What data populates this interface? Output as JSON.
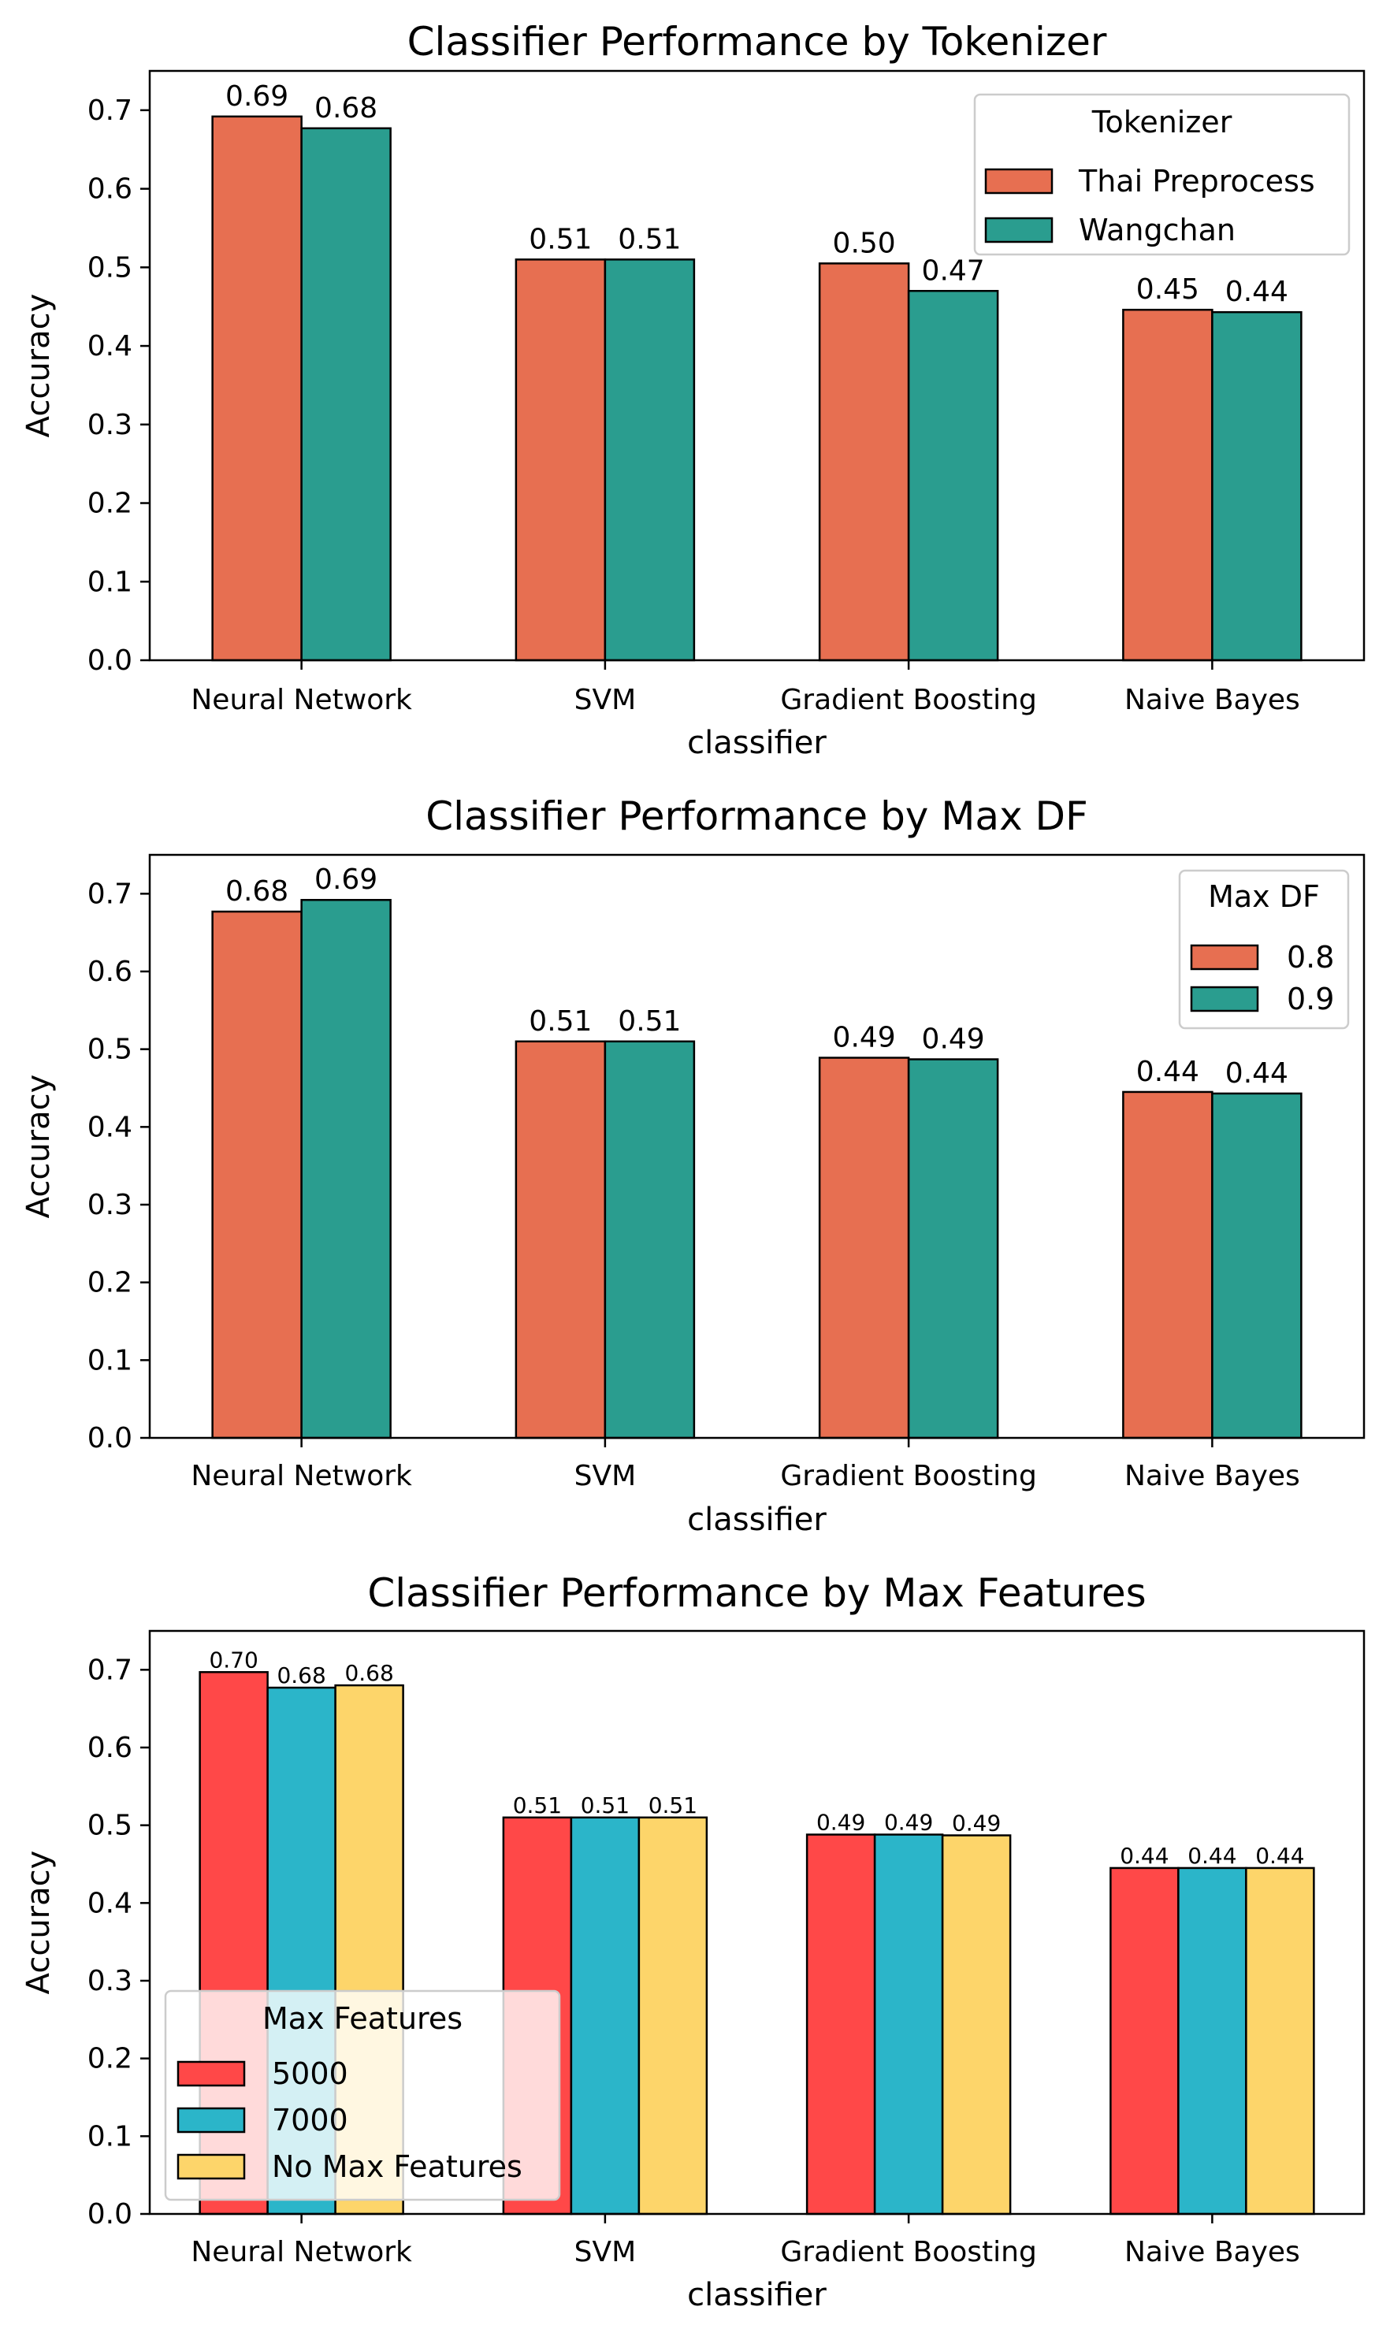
{
  "chart_data": [
    {
      "type": "bar",
      "title": "Classifier Performance by Tokenizer",
      "xlabel": "classifier",
      "ylabel": "Accuracy",
      "ylim": [
        0,
        0.75
      ],
      "yticks": [
        "0.0",
        "0.1",
        "0.2",
        "0.3",
        "0.4",
        "0.5",
        "0.6",
        "0.7"
      ],
      "categories": [
        "Neural Network",
        "SVM",
        "Gradient Boosting",
        "Naive Bayes"
      ],
      "legend": {
        "title": "Tokenizer",
        "placement": "upper right"
      },
      "series": [
        {
          "name": "Thai Preprocess",
          "color": "#e76f51",
          "values": [
            0.692,
            0.51,
            0.505,
            0.446
          ],
          "labels": [
            "0.69",
            "0.51",
            "0.50",
            "0.45"
          ]
        },
        {
          "name": "Wangchan",
          "color": "#2a9d8f",
          "values": [
            0.677,
            0.51,
            0.47,
            0.443
          ],
          "labels": [
            "0.68",
            "0.51",
            "0.47",
            "0.44"
          ]
        }
      ]
    },
    {
      "type": "bar",
      "title": "Classifier Performance by Max DF",
      "xlabel": "classifier",
      "ylabel": "Accuracy",
      "ylim": [
        0,
        0.75
      ],
      "yticks": [
        "0.0",
        "0.1",
        "0.2",
        "0.3",
        "0.4",
        "0.5",
        "0.6",
        "0.7"
      ],
      "categories": [
        "Neural Network",
        "SVM",
        "Gradient Boosting",
        "Naive Bayes"
      ],
      "legend": {
        "title": "Max DF",
        "placement": "upper right"
      },
      "series": [
        {
          "name": "0.8",
          "color": "#e76f51",
          "values": [
            0.677,
            0.51,
            0.489,
            0.445
          ],
          "labels": [
            "0.68",
            "0.51",
            "0.49",
            "0.44"
          ]
        },
        {
          "name": "0.9",
          "color": "#2a9d8f",
          "values": [
            0.692,
            0.51,
            0.487,
            0.443
          ],
          "labels": [
            "0.69",
            "0.51",
            "0.49",
            "0.44"
          ]
        }
      ]
    },
    {
      "type": "bar",
      "title": "Classifier Performance by Max Features",
      "xlabel": "classifier",
      "ylabel": "Accuracy",
      "ylim": [
        0,
        0.75
      ],
      "yticks": [
        "0.0",
        "0.1",
        "0.2",
        "0.3",
        "0.4",
        "0.5",
        "0.6",
        "0.7"
      ],
      "categories": [
        "Neural Network",
        "SVM",
        "Gradient Boosting",
        "Naive Bayes"
      ],
      "legend": {
        "title": "Max Features",
        "placement": "lower left"
      },
      "series": [
        {
          "name": "5000",
          "color": "#ff4848",
          "values": [
            0.697,
            0.51,
            0.488,
            0.445
          ],
          "labels": [
            "0.70",
            "0.51",
            "0.49",
            "0.44"
          ]
        },
        {
          "name": "7000",
          "color": "#2bb5c9",
          "values": [
            0.677,
            0.51,
            0.488,
            0.445
          ],
          "labels": [
            "0.68",
            "0.51",
            "0.49",
            "0.44"
          ]
        },
        {
          "name": "No Max Features",
          "color": "#fdd56a",
          "values": [
            0.68,
            0.51,
            0.487,
            0.445
          ],
          "labels": [
            "0.68",
            "0.51",
            "0.49",
            "0.44"
          ]
        }
      ]
    }
  ]
}
